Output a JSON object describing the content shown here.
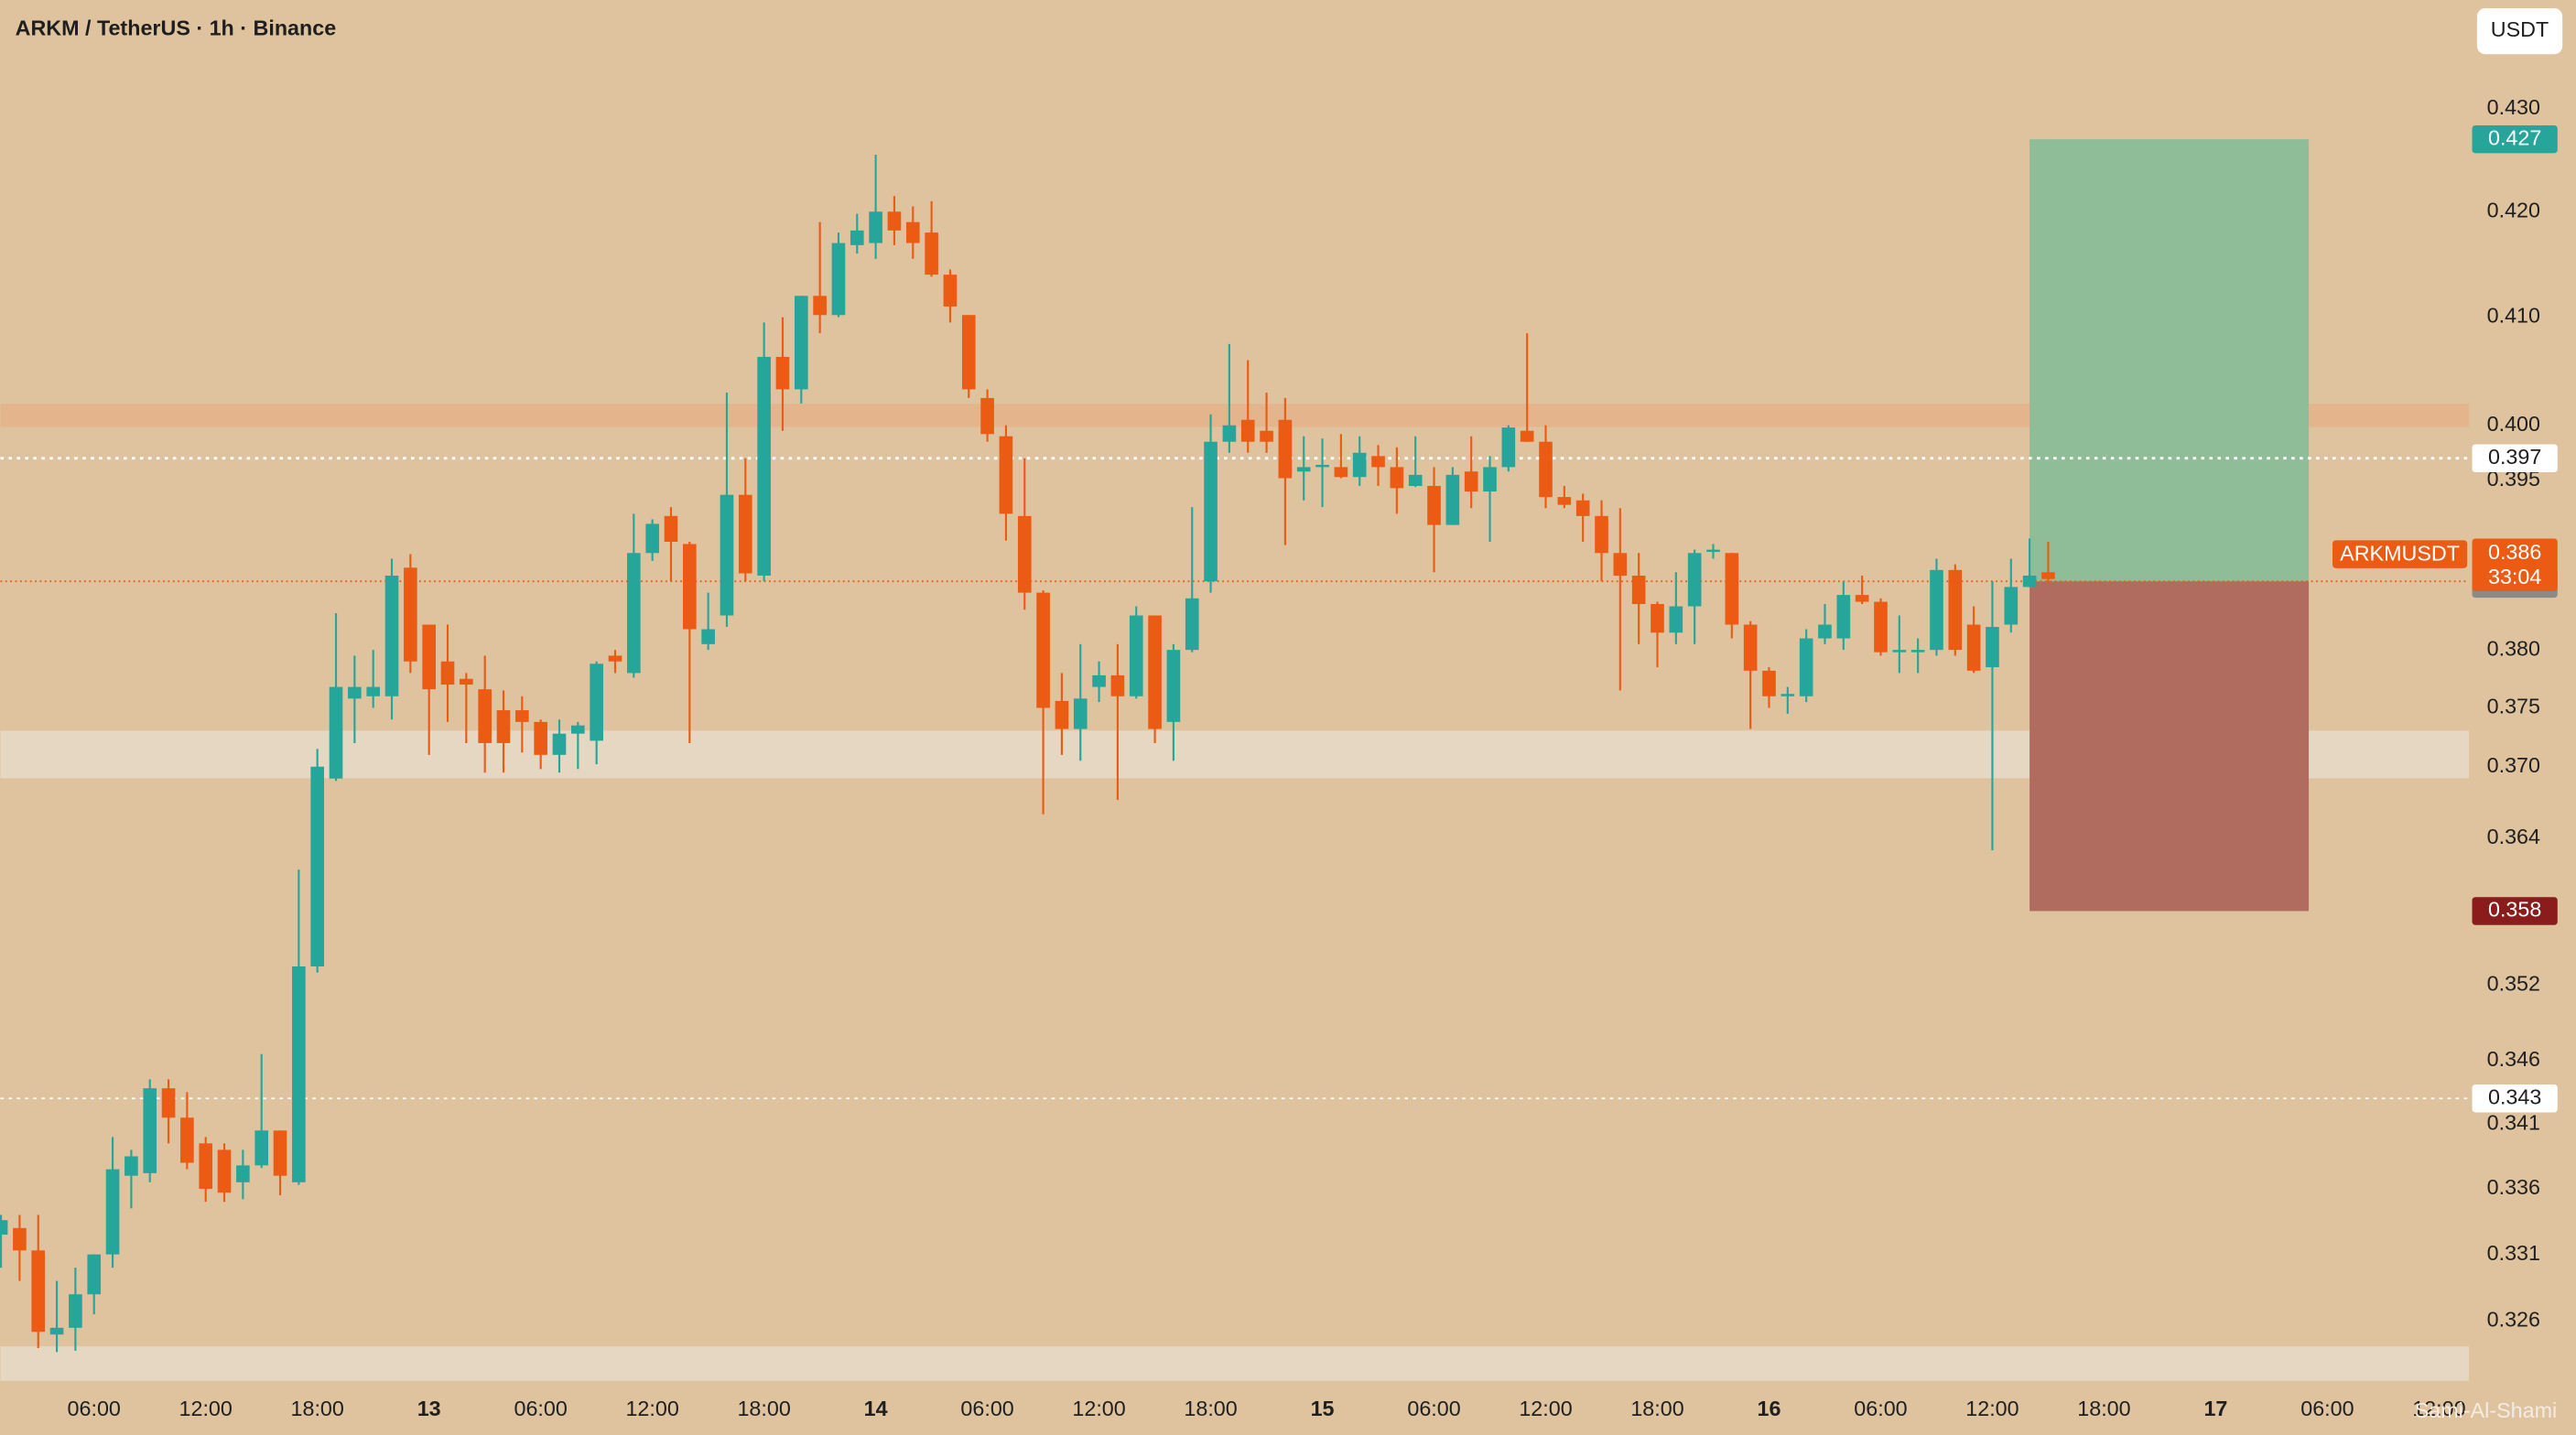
{
  "chart_data": {
    "type": "candlestick",
    "title": "ARKM / TetherUS · 1h · Binance",
    "currency_button": "USDT",
    "watermark": "Sami-Al-Shami",
    "log_scale": true,
    "grid": false,
    "up_color": "#26a69a",
    "down_color": "#ec5b14",
    "x": [
      1,
      2,
      3,
      4,
      5,
      6,
      7,
      8,
      9,
      10,
      11,
      12,
      13,
      14,
      15,
      16,
      17,
      18,
      19,
      20,
      21,
      22,
      23,
      24,
      25,
      26,
      27,
      28,
      29,
      30,
      31,
      32,
      33,
      34,
      35,
      36,
      37,
      38,
      39,
      40,
      41,
      42,
      43,
      44,
      45,
      46,
      47,
      48,
      49,
      50,
      51,
      52,
      53,
      54,
      55,
      56,
      57,
      58,
      59,
      60,
      61,
      62,
      63,
      64,
      65,
      66,
      67,
      68,
      69,
      70,
      71,
      72,
      73,
      74,
      75,
      76,
      77,
      78,
      79,
      80,
      81,
      82,
      83,
      84,
      85,
      86,
      87,
      88,
      89,
      90,
      91,
      92,
      93,
      94,
      95,
      96,
      97,
      98,
      99,
      100,
      101,
      102,
      103,
      104,
      105,
      106,
      107,
      108,
      109,
      110,
      111
    ],
    "open": [
      0.3325,
      0.333,
      0.3313,
      0.325,
      0.3255,
      0.328,
      0.331,
      0.337,
      0.3372,
      0.3438,
      0.3415,
      0.3395,
      0.339,
      0.3365,
      0.3378,
      0.3405,
      0.3365,
      0.3535,
      0.369,
      0.3758,
      0.376,
      0.376,
      0.3872,
      0.3822,
      0.379,
      0.3775,
      0.3766,
      0.3748,
      0.3748,
      0.3738,
      0.371,
      0.3728,
      0.3722,
      0.3795,
      0.378,
      0.3885,
      0.3918,
      0.3893,
      0.3805,
      0.383,
      0.3937,
      0.3865,
      0.4063,
      0.4033,
      0.412,
      0.4102,
      0.4168,
      0.417,
      0.42,
      0.419,
      0.418,
      0.414,
      0.4102,
      0.4025,
      0.399,
      0.3918,
      0.385,
      0.3756,
      0.3732,
      0.3768,
      0.3778,
      0.376,
      0.383,
      0.3738,
      0.38,
      0.386,
      0.3985,
      0.4005,
      0.3995,
      0.4005,
      0.3958,
      0.3962,
      0.3962,
      0.3953,
      0.3972,
      0.3962,
      0.3945,
      0.3945,
      0.391,
      0.3958,
      0.394,
      0.3962,
      0.3995,
      0.3985,
      0.3935,
      0.3932,
      0.3918,
      0.3885,
      0.3865,
      0.384,
      0.3815,
      0.3838,
      0.3886,
      0.3885,
      0.3822,
      0.3782,
      0.376,
      0.376,
      0.381,
      0.381,
      0.3848,
      0.3842,
      0.3798,
      0.3798,
      0.38,
      0.387,
      0.3822,
      0.3785,
      0.3822,
      0.3855,
      0.3868
    ],
    "high": [
      0.334,
      0.334,
      0.334,
      0.329,
      0.33,
      0.331,
      0.34,
      0.339,
      0.3445,
      0.3445,
      0.3435,
      0.34,
      0.3395,
      0.339,
      0.3465,
      0.3405,
      0.3614,
      0.3715,
      0.3832,
      0.3795,
      0.38,
      0.388,
      0.3884,
      0.3822,
      0.3822,
      0.378,
      0.3795,
      0.3765,
      0.376,
      0.374,
      0.374,
      0.3738,
      0.379,
      0.38,
      0.392,
      0.3915,
      0.3926,
      0.3895,
      0.385,
      0.403,
      0.397,
      0.4095,
      0.41,
      0.412,
      0.419,
      0.418,
      0.4198,
      0.4255,
      0.4215,
      0.4205,
      0.421,
      0.4145,
      0.4102,
      0.4033,
      0.4,
      0.397,
      0.3852,
      0.378,
      0.3805,
      0.379,
      0.3805,
      0.3838,
      0.383,
      0.3805,
      0.3926,
      0.401,
      0.4075,
      0.406,
      0.403,
      0.4025,
      0.399,
      0.3988,
      0.3992,
      0.399,
      0.3982,
      0.398,
      0.399,
      0.3962,
      0.3962,
      0.399,
      0.3972,
      0.4,
      0.4085,
      0.4,
      0.3945,
      0.3938,
      0.3932,
      0.3925,
      0.3885,
      0.3842,
      0.3868,
      0.3888,
      0.3893,
      0.3885,
      0.3825,
      0.3785,
      0.3768,
      0.3818,
      0.384,
      0.386,
      0.3865,
      0.3845,
      0.383,
      0.381,
      0.388,
      0.3875,
      0.3838,
      0.386,
      0.388,
      0.3898,
      0.3895
    ],
    "low": [
      0.33,
      0.329,
      0.324,
      0.3237,
      0.3238,
      0.3265,
      0.33,
      0.3345,
      0.3365,
      0.3395,
      0.3375,
      0.335,
      0.335,
      0.3352,
      0.3376,
      0.3355,
      0.3363,
      0.353,
      0.3688,
      0.372,
      0.375,
      0.374,
      0.378,
      0.371,
      0.3738,
      0.372,
      0.3695,
      0.3695,
      0.3712,
      0.3698,
      0.3695,
      0.3698,
      0.3702,
      0.378,
      0.3776,
      0.3878,
      0.386,
      0.372,
      0.38,
      0.382,
      0.386,
      0.386,
      0.3995,
      0.402,
      0.4085,
      0.41,
      0.416,
      0.4155,
      0.4168,
      0.4155,
      0.4138,
      0.4095,
      0.4025,
      0.3985,
      0.3896,
      0.3835,
      0.366,
      0.371,
      0.3705,
      0.3755,
      0.3672,
      0.3758,
      0.372,
      0.3705,
      0.3798,
      0.385,
      0.3975,
      0.3975,
      0.3975,
      0.3892,
      0.3932,
      0.3926,
      0.3952,
      0.3945,
      0.3945,
      0.392,
      0.3944,
      0.3868,
      0.391,
      0.3925,
      0.3895,
      0.3958,
      0.3985,
      0.3925,
      0.3925,
      0.3895,
      0.386,
      0.3765,
      0.3805,
      0.3785,
      0.3805,
      0.3805,
      0.388,
      0.381,
      0.3732,
      0.375,
      0.3745,
      0.3755,
      0.3805,
      0.38,
      0.384,
      0.3795,
      0.378,
      0.378,
      0.3795,
      0.3795,
      0.378,
      0.363,
      0.3815,
      0.3855,
      0.3858
    ],
    "close": [
      0.3336,
      0.3313,
      0.3252,
      0.3255,
      0.328,
      0.331,
      0.3375,
      0.3385,
      0.3438,
      0.3415,
      0.338,
      0.336,
      0.3357,
      0.3378,
      0.3405,
      0.337,
      0.3535,
      0.37,
      0.3768,
      0.3768,
      0.3768,
      0.3865,
      0.379,
      0.3766,
      0.377,
      0.377,
      0.372,
      0.372,
      0.3738,
      0.371,
      0.3728,
      0.3735,
      0.3788,
      0.379,
      0.3885,
      0.3911,
      0.3895,
      0.3818,
      0.3818,
      0.3937,
      0.3867,
      0.4063,
      0.4033,
      0.412,
      0.4102,
      0.417,
      0.4182,
      0.42,
      0.4182,
      0.417,
      0.414,
      0.411,
      0.4033,
      0.3992,
      0.392,
      0.385,
      0.375,
      0.3732,
      0.3758,
      0.3778,
      0.376,
      0.383,
      0.3732,
      0.38,
      0.3845,
      0.3985,
      0.4,
      0.3985,
      0.3985,
      0.3952,
      0.3962,
      0.3964,
      0.3953,
      0.3975,
      0.3962,
      0.3943,
      0.3955,
      0.391,
      0.3955,
      0.394,
      0.3962,
      0.3998,
      0.3985,
      0.3935,
      0.3928,
      0.3918,
      0.3885,
      0.3865,
      0.384,
      0.3815,
      0.3838,
      0.3885,
      0.3888,
      0.3822,
      0.3782,
      0.376,
      0.3762,
      0.381,
      0.3822,
      0.3848,
      0.3842,
      0.3798,
      0.38,
      0.38,
      0.387,
      0.38,
      0.3782,
      0.382,
      0.3855,
      0.3865,
      0.3862
    ],
    "xlim": [
      0.97,
      133.6
    ],
    "ylim": [
      0.3211,
      0.4408
    ],
    "xticks": [
      {
        "value": 6,
        "label": "06:00"
      },
      {
        "value": 12,
        "label": "12:00"
      },
      {
        "value": 18,
        "label": "18:00"
      },
      {
        "value": 24,
        "label": "13"
      },
      {
        "value": 30,
        "label": "06:00"
      },
      {
        "value": 36,
        "label": "12:00"
      },
      {
        "value": 42,
        "label": "18:00"
      },
      {
        "value": 48,
        "label": "14"
      },
      {
        "value": 54,
        "label": "06:00"
      },
      {
        "value": 60,
        "label": "12:00"
      },
      {
        "value": 66,
        "label": "18:00"
      },
      {
        "value": 72,
        "label": "15"
      },
      {
        "value": 78,
        "label": "06:00"
      },
      {
        "value": 84,
        "label": "12:00"
      },
      {
        "value": 90,
        "label": "18:00"
      },
      {
        "value": 96,
        "label": "16"
      },
      {
        "value": 102,
        "label": "06:00"
      },
      {
        "value": 108,
        "label": "12:00"
      },
      {
        "value": 114,
        "label": "18:00"
      },
      {
        "value": 120,
        "label": "17"
      },
      {
        "value": 126,
        "label": "06:00"
      },
      {
        "value": 132,
        "label": "12:00"
      }
    ],
    "yticks": [
      {
        "value": 0.43,
        "label": "0.430"
      },
      {
        "value": 0.42,
        "label": "0.420"
      },
      {
        "value": 0.41,
        "label": "0.410"
      },
      {
        "value": 0.4,
        "label": "0.400"
      },
      0.395,
      {
        "value": 0.38,
        "label": "0.380"
      },
      0.375,
      {
        "value": 0.37,
        "label": "0.370"
      },
      0.364,
      0.352,
      0.346,
      0.341,
      0.336,
      0.331,
      0.326
    ],
    "price_lines": [
      0.397,
      0.343
    ],
    "current": {
      "symbol": "ARKMUSDT",
      "value": 0.386,
      "countdown": "33:04"
    },
    "position": {
      "target": 0.427,
      "entry": 0.386,
      "stop": 0.358
    }
  }
}
